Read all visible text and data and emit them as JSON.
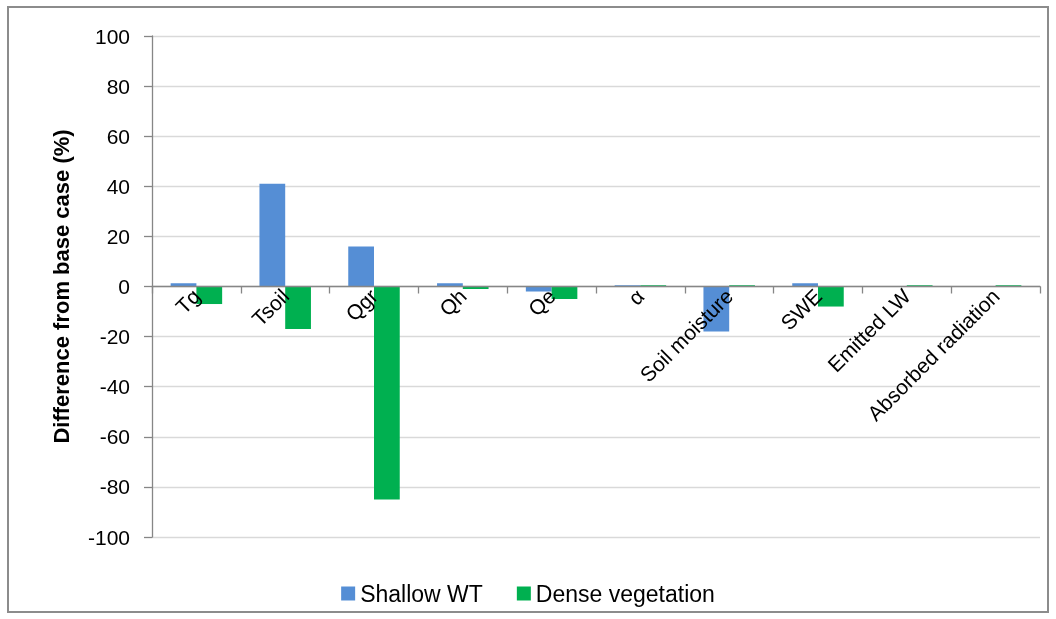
{
  "chart_data": {
    "type": "bar",
    "ylabel": "Difference from base case (%)",
    "categories": [
      "Tg",
      "Tsoil",
      "Qgr",
      "Qh",
      "Qe",
      "α",
      "Soil moisture",
      "SWE",
      "Emitted LW",
      "Absorbed radiation"
    ],
    "series": [
      {
        "name": "Shallow WT",
        "color": "#558ed5",
        "values": [
          1.3,
          41,
          16,
          1.3,
          -2,
          0.5,
          -18,
          1.3,
          0,
          0
        ]
      },
      {
        "name": "Dense vegetation",
        "color": "#00b050",
        "values": [
          -7,
          -17,
          -85,
          -1,
          -5,
          0.5,
          0.5,
          -8,
          0.5,
          0.5
        ]
      }
    ],
    "ylim": [
      -100,
      100
    ],
    "yticks": [
      -100,
      -80,
      -60,
      -40,
      -20,
      0,
      20,
      40,
      60,
      80,
      100
    ],
    "grid": "y",
    "legend": "bottom"
  }
}
